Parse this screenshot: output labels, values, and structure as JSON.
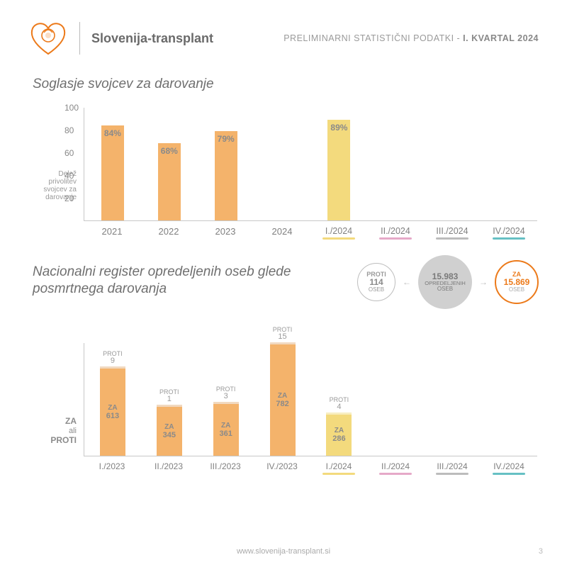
{
  "header": {
    "org_name": "Slovenija-transplant",
    "subtitle_prefix": "PRELIMINARNI STATISTIČNI PODATKI  -  ",
    "subtitle_bold": "I. KVARTAL 2024",
    "logo_color": "#ec7a1a"
  },
  "chart1": {
    "title": "Soglasje svojcev za darovanje",
    "ylabel": "Delež privolitev svojcev za darovanje",
    "ymax": 100,
    "yticks": [
      20,
      40,
      60,
      80,
      100
    ],
    "tick_color": "#888888",
    "axis_color": "#c8c8c8",
    "label_text_color": "#8a8a8a",
    "quarter_underline_colors": {
      "q1": "#f3da7d",
      "q2": "#e6a9c8",
      "q3": "#bcbcbc",
      "q4": "#66c0c4"
    },
    "slots": [
      {
        "label": "2021",
        "value": 84,
        "pct_label": "84%",
        "color": "#f4b36b",
        "type": "year"
      },
      {
        "label": "2022",
        "value": 68,
        "pct_label": "68%",
        "color": "#f4b36b",
        "type": "year"
      },
      {
        "label": "2023",
        "value": 79,
        "pct_label": "79%",
        "color": "#f4b36b",
        "type": "year"
      },
      {
        "label": "2024",
        "value": null,
        "pct_label": "",
        "color": "#f4b36b",
        "type": "year"
      },
      {
        "label": "I./2024",
        "value": 89,
        "pct_label": "89%",
        "color": "#f3da7d",
        "type": "quarter",
        "underline": "q1"
      },
      {
        "label": "II./2024",
        "value": null,
        "pct_label": "",
        "color": "#e6a9c8",
        "type": "quarter",
        "underline": "q2"
      },
      {
        "label": "III./2024",
        "value": null,
        "pct_label": "",
        "color": "#bcbcbc",
        "type": "quarter",
        "underline": "q3"
      },
      {
        "label": "IV./2024",
        "value": null,
        "pct_label": "",
        "color": "#66c0c4",
        "type": "quarter",
        "underline": "q4"
      }
    ]
  },
  "chart2": {
    "title": "Nacionalni register opredeljenih oseb glede posmrtnega darovanja",
    "ylabel_za": "ZA",
    "ylabel_ali": "ali",
    "ylabel_proti": "PROTI",
    "za_word": "ZA",
    "proti_word": "PROTI",
    "max": 800,
    "za_color_2023": "#f4b36b",
    "proti_color_2023": "#f1d9c0",
    "za_color_2024": "#f3da7d",
    "proti_color_2024": "#f8eec0",
    "quarter_underline_colors": {
      "q1": "#f3da7d",
      "q2": "#e6a9c8",
      "q3": "#bcbcbc",
      "q4": "#66c0c4"
    },
    "slots": [
      {
        "label": "I./2023",
        "za": 613,
        "proti": 9,
        "za_color": "#f4b36b",
        "proti_color": "#f1d9c0"
      },
      {
        "label": "II./2023",
        "za": 345,
        "proti": 1,
        "za_color": "#f4b36b",
        "proti_color": "#f1d9c0"
      },
      {
        "label": "III./2023",
        "za": 361,
        "proti": 3,
        "za_color": "#f4b36b",
        "proti_color": "#f1d9c0"
      },
      {
        "label": "IV./2023",
        "za": 782,
        "proti": 15,
        "za_color": "#f4b36b",
        "proti_color": "#f1d9c0"
      },
      {
        "label": "I./2024",
        "za": 286,
        "proti": 4,
        "za_color": "#f3da7d",
        "proti_color": "#f8eec0",
        "underline": "q1"
      },
      {
        "label": "II./2024",
        "za": null,
        "proti": null,
        "underline": "q2"
      },
      {
        "label": "III./2024",
        "za": null,
        "proti": null,
        "underline": "q3"
      },
      {
        "label": "IV./2024",
        "za": null,
        "proti": null,
        "underline": "q4"
      }
    ],
    "circles": {
      "proti": {
        "label": "PROTI",
        "value": "114",
        "unit": "OSEB",
        "border": "#bdbdbd",
        "text": "#9a9a9a"
      },
      "total": {
        "value": "15.983",
        "label": "OPREDELJENIH",
        "unit": "OSEB",
        "bg": "#d0d0d0",
        "text": "#7a7a7a"
      },
      "za": {
        "label": "ZA",
        "value": "15.869",
        "unit": "OSEB",
        "border": "#ec7a1a",
        "text": "#ec7a1a"
      }
    }
  },
  "footer": {
    "url": "www.slovenija-transplant.si",
    "page": "3"
  }
}
